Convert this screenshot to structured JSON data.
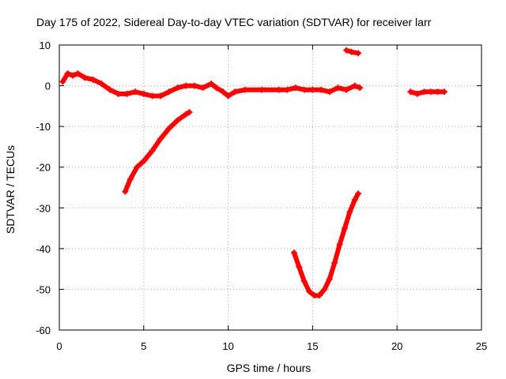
{
  "chart_data": {
    "type": "scatter",
    "title": "Day 175 of 2022, Sidereal Day-to-day VTEC variation (SDTVAR) for receiver larr",
    "xlabel": "GPS time / hours",
    "ylabel": "SDTVAR / TECUs",
    "xlim": [
      0,
      25
    ],
    "ylim": [
      -60,
      10
    ],
    "xticks": [
      "0",
      "5",
      "10",
      "15",
      "20",
      "25"
    ],
    "yticks": [
      "10",
      "0",
      "-10",
      "-20",
      "-30",
      "-40",
      "-50",
      "-60"
    ],
    "grid": true,
    "color": "#ff0000",
    "marker": "plus",
    "series": [
      {
        "x": [
          0.2,
          0.5,
          0.8,
          1.1,
          1.5,
          2.0,
          2.5,
          3.0,
          3.5,
          4.0,
          4.5,
          5.0,
          5.5,
          6.0,
          6.5,
          7.0,
          7.5,
          8.0,
          8.5,
          9.0,
          9.3,
          9.7,
          10.0,
          10.4,
          11.0,
          12.0,
          13.0,
          13.5,
          14.0,
          14.5,
          15.0,
          15.5,
          16.0,
          16.5,
          17.0,
          17.5,
          17.8
        ],
        "y": [
          1,
          3,
          2.5,
          3,
          2,
          1.5,
          0.5,
          -1,
          -2,
          -2,
          -1.5,
          -2,
          -2.5,
          -2.5,
          -1.5,
          -0.5,
          0,
          0,
          -0.5,
          0.5,
          -0.5,
          -1.5,
          -2.5,
          -1.5,
          -1,
          -1,
          -1,
          -1,
          -0.5,
          -1,
          -1,
          -1,
          -1.5,
          -0.5,
          -1,
          0,
          -0.5
        ]
      },
      {
        "x": [
          3.9,
          4.2,
          4.6,
          5.0,
          5.5,
          6.0,
          6.5,
          7.0,
          7.5,
          7.7
        ],
        "y": [
          -26,
          -23,
          -20,
          -18.5,
          -16,
          -13,
          -10.5,
          -8.5,
          -7,
          -6.5
        ]
      },
      {
        "x": [
          17.0,
          17.3,
          17.7
        ],
        "y": [
          8.7,
          8.3,
          8
        ]
      },
      {
        "x": [
          13.9,
          14.2,
          14.5,
          14.8,
          15.1,
          15.4,
          15.7,
          16.0,
          16.3,
          16.6,
          16.9,
          17.2,
          17.5,
          17.7
        ],
        "y": [
          -41,
          -44.5,
          -48,
          -50.5,
          -51.5,
          -51.5,
          -50,
          -47.5,
          -43.5,
          -39,
          -35,
          -31,
          -28,
          -26.5
        ]
      },
      {
        "x": [
          20.8,
          21.2,
          21.6,
          22.0,
          22.4,
          22.8
        ],
        "y": [
          -1.5,
          -2,
          -1.5,
          -1.5,
          -1.5,
          -1.5
        ]
      }
    ]
  }
}
